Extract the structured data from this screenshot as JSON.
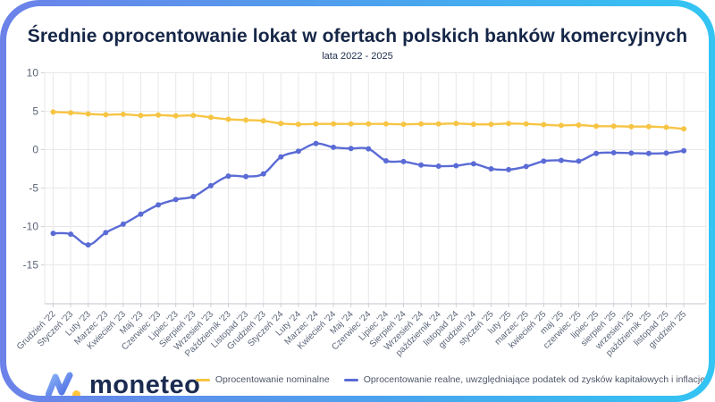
{
  "card": {
    "title": "Średnie oprocentowanie lokat w ofertach polskich banków komercyjnych",
    "subtitle": "lata 2022 - 2025"
  },
  "logo": {
    "text": "moneteo"
  },
  "colors": {
    "border_gradient_left": "#6c82e9",
    "border_gradient_right": "#33c5f3",
    "title": "#152647",
    "grid": "#e8e8ea",
    "axis": "#cfd0d6",
    "tick_text": "#5b6478",
    "nominal_line": "#f7c544",
    "real_line": "#5a6bd5",
    "logo_navy": "#1b2b50",
    "logo_yellow": "#ffc53d"
  },
  "chart_data": {
    "type": "line",
    "title": "Średnie oprocentowanie lokat w ofertach polskich banków komercyjnych",
    "subtitle": "lata 2022 - 2025",
    "xlabel": "",
    "ylabel": "",
    "ylim": [
      -15,
      10
    ],
    "yticks": [
      10,
      5,
      0,
      -5,
      -10,
      -15
    ],
    "grid": true,
    "legend_position": "bottom",
    "categories": [
      "Grudzień '22",
      "Styczeń '23",
      "Luty '23",
      "Marzec '23",
      "Kwiecień '23",
      "Maj '23",
      "Czerwiec '23",
      "Lipiec '23",
      "Sierpień '23",
      "Wrzesień '23",
      "Październik '23",
      "Listopad '23",
      "Grudzień '23",
      "Styczeń '24",
      "Luty '24",
      "Marzec '24",
      "Kwiecień '24",
      "Maj '24",
      "Czerwiec '24",
      "Lipiec '24",
      "Sierpień '24",
      "Wrzesień '24",
      "październik '24",
      "listopad '24",
      "grudzień '24",
      "styczeń '25",
      "luty '25",
      "marzec '25",
      "kwiecień '25",
      "maj '25",
      "czerwiec '25",
      "lipiec '25",
      "sierpień '25",
      "wrzesień '25",
      "październik '25",
      "listopad '25",
      "grudzień '25"
    ],
    "series": [
      {
        "name": "Oprocentowanie nominalne",
        "color": "#f7c544",
        "values": [
          4.9,
          4.8,
          4.65,
          4.55,
          4.6,
          4.45,
          4.5,
          4.4,
          4.45,
          4.2,
          3.95,
          3.85,
          3.75,
          3.4,
          3.3,
          3.35,
          3.35,
          3.35,
          3.35,
          3.35,
          3.3,
          3.35,
          3.35,
          3.4,
          3.3,
          3.3,
          3.4,
          3.35,
          3.25,
          3.15,
          3.2,
          3.05,
          3.05,
          3.0,
          3.0,
          2.9,
          2.7
        ]
      },
      {
        "name": "Oprocentowanie realne, uwzględniające podatek od zysków kapitałowych i inflację",
        "color": "#5a6bd5",
        "values": [
          -10.9,
          -11.0,
          -12.4,
          -10.8,
          -9.7,
          -8.4,
          -7.2,
          -6.5,
          -6.1,
          -4.7,
          -3.45,
          -3.5,
          -3.15,
          -0.95,
          -0.2,
          0.8,
          0.3,
          0.15,
          0.1,
          -1.45,
          -1.55,
          -2.0,
          -2.15,
          -2.1,
          -1.85,
          -2.5,
          -2.6,
          -2.2,
          -1.5,
          -1.4,
          -1.5,
          -0.5,
          -0.4,
          -0.45,
          -0.5,
          -0.45,
          -0.15
        ]
      }
    ]
  }
}
